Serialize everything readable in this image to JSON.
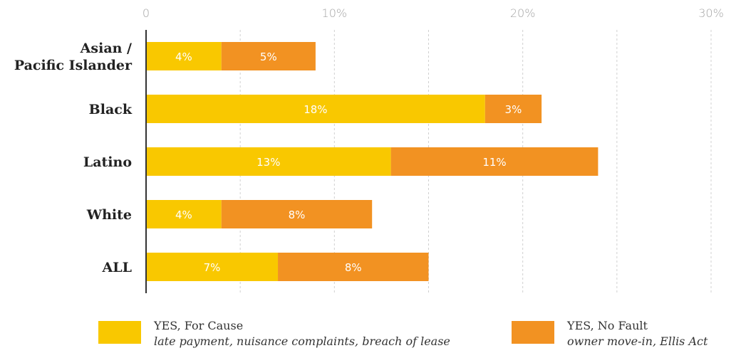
{
  "chart_data": {
    "type": "bar",
    "orientation": "horizontal",
    "stacked": true,
    "categories": [
      "Asian / Pacific Islander",
      "Black",
      "Latino",
      "White",
      "ALL"
    ],
    "category_lines": [
      [
        "Asian /",
        "Pacific Islander"
      ],
      [
        "Black"
      ],
      [
        "Latino"
      ],
      [
        "White"
      ],
      [
        "ALL"
      ]
    ],
    "series": [
      {
        "name": "YES, For Cause",
        "color": "#f9c800",
        "values": [
          4,
          18,
          13,
          4,
          7
        ],
        "labels": [
          "4%",
          "18%",
          "13%",
          "4%",
          "7%"
        ]
      },
      {
        "name": "YES, No Fault",
        "color": "#f29222",
        "values": [
          5,
          3,
          11,
          8,
          8
        ],
        "labels": [
          "5%",
          "3%",
          "11%",
          "8%",
          "8%"
        ]
      }
    ],
    "xlim": [
      0,
      30
    ],
    "xticks": [
      0,
      10,
      20,
      30
    ],
    "xtick_labels": [
      "0",
      "10%",
      "20%",
      "30%"
    ],
    "grid": true,
    "legend_position": "bottom"
  },
  "legend": [
    {
      "title": "YES, For Cause",
      "subtitle": "late payment, nuisance complaints, breach of lease",
      "color": "#f9c800"
    },
    {
      "title": "YES, No Fault",
      "subtitle": "owner move-in, Ellis Act",
      "color": "#f29222"
    }
  ]
}
